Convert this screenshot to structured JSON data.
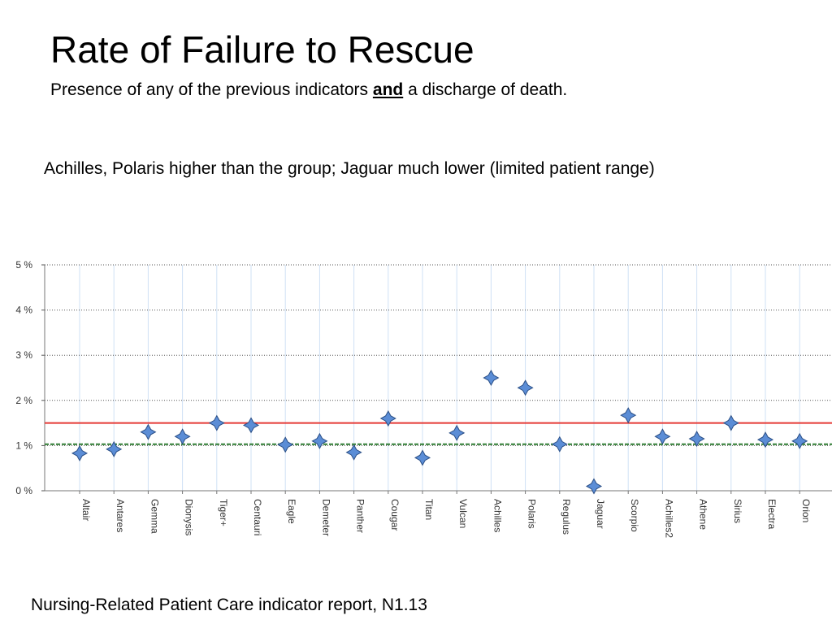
{
  "slide": {
    "title": "Rate of Failure to Rescue",
    "subtitle_pre": "Presence of any of the previous indicators ",
    "subtitle_em": "and",
    "subtitle_post": " a discharge of death.",
    "note": "Achilles, Polaris higher than the group;  Jaguar much lower (limited patient range)",
    "footer": "Nursing-Related Patient Care indicator report, N1.13"
  },
  "chart_data": {
    "type": "scatter",
    "title": "",
    "xlabel": "",
    "ylabel": "",
    "ylim": [
      0,
      5
    ],
    "yticks": [
      0,
      1,
      2,
      3,
      4,
      5
    ],
    "ytick_labels": [
      "0 %",
      "1 %",
      "2 %",
      "3 %",
      "4 %",
      "5 %"
    ],
    "categories": [
      "Altair",
      "Antares",
      "Gemma",
      "Dionysis",
      "Tiger+",
      "Centauri",
      "Eagle",
      "Demeter",
      "Panther",
      "Cougar",
      "Titan",
      "Vulcan",
      "Achilles",
      "Polaris",
      "Regulus",
      "Jaguar",
      "Scorpio",
      "Achilles2",
      "Athene",
      "Sirius",
      "Electra",
      "Orion"
    ],
    "values": [
      0.83,
      0.92,
      1.3,
      1.2,
      1.5,
      1.45,
      1.02,
      1.1,
      0.85,
      1.6,
      0.73,
      1.28,
      2.5,
      2.28,
      1.03,
      0.1,
      1.67,
      1.2,
      1.15,
      1.5,
      1.13,
      1.1
    ],
    "reference_lines": [
      {
        "value": 1.5,
        "color": "#e53935",
        "style": "solid"
      },
      {
        "value": 1.03,
        "color": "#2e7d32",
        "style": "dashed"
      }
    ],
    "marker_color": "#5b8dd6",
    "grid": true,
    "legend": "none"
  }
}
